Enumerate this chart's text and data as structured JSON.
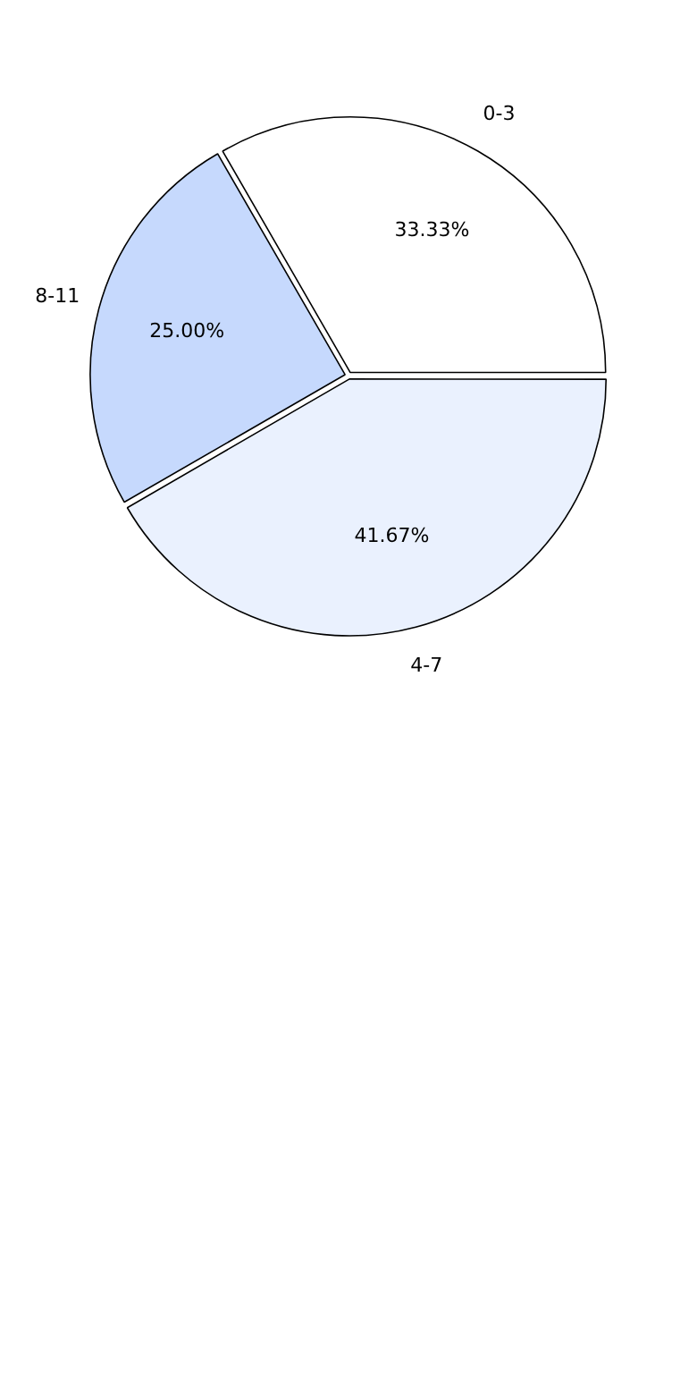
{
  "chart_data": {
    "type": "pie",
    "categories": [
      "0-3",
      "4-7",
      "8-11"
    ],
    "values": [
      33.33,
      41.67,
      25.0
    ],
    "value_labels": [
      "33.33%",
      "41.67%",
      "25.00%"
    ],
    "colors": [
      "#ffffff",
      "#eaf1fe",
      "#c6d9fd"
    ],
    "legend": false
  }
}
